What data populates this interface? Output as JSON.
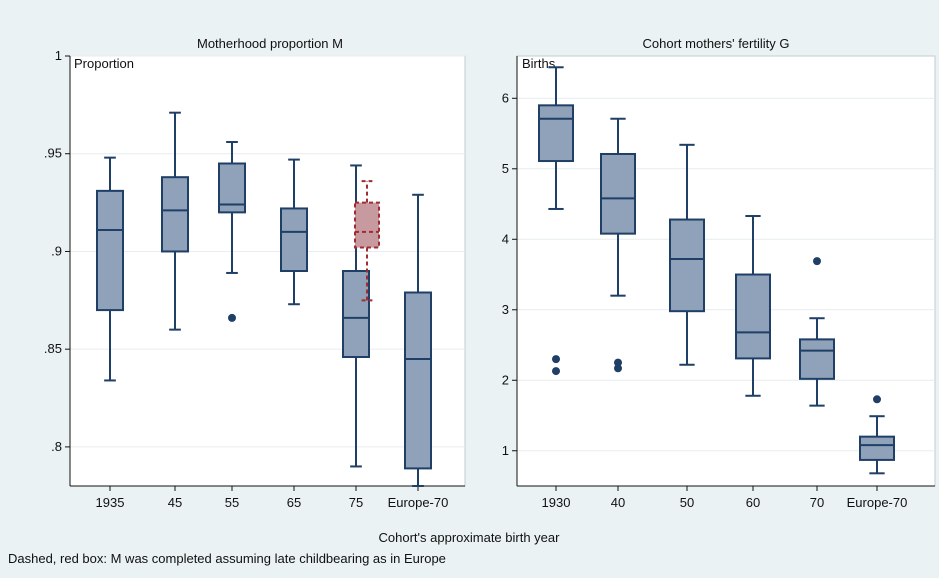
{
  "colors": {
    "background": "#eaf2f3",
    "box_fill": "#8fa2b9",
    "box_stroke": "#1f3f66",
    "red_fill": "#c79a9f",
    "red_stroke": "#a02c34",
    "grid": "#e6eef1"
  },
  "common_xlabel": "Cohort's approximate birth year",
  "note": "Dashed, red box: M was completed assuming late childbearing as in Europe",
  "chart_data": [
    {
      "type": "box",
      "title": "Motherhood proportion M",
      "ylabel": "Proportion",
      "ylim": [
        0.78,
        1.0
      ],
      "yticks": [
        0.8,
        0.85,
        0.9,
        0.95,
        1
      ],
      "ytick_labels": [
        ".8",
        ".85",
        ".9",
        ".95",
        "1"
      ],
      "categories": [
        "1935",
        "45",
        "55",
        "65",
        "75",
        "Europe-70"
      ],
      "boxes": [
        {
          "category": "1935",
          "whisker_low": 0.834,
          "q1": 0.87,
          "median": 0.911,
          "q3": 0.931,
          "whisker_high": 0.948,
          "outliers": []
        },
        {
          "category": "45",
          "whisker_low": 0.86,
          "q1": 0.9,
          "median": 0.921,
          "q3": 0.938,
          "whisker_high": 0.971,
          "outliers": []
        },
        {
          "category": "55",
          "whisker_low": 0.889,
          "q1": 0.92,
          "median": 0.924,
          "q3": 0.945,
          "whisker_high": 0.956,
          "outliers": [
            0.866
          ]
        },
        {
          "category": "65",
          "whisker_low": 0.873,
          "q1": 0.89,
          "median": 0.91,
          "q3": 0.922,
          "whisker_high": 0.947,
          "outliers": []
        },
        {
          "category": "75",
          "whisker_low": 0.79,
          "q1": 0.846,
          "median": 0.866,
          "q3": 0.89,
          "whisker_high": 0.944,
          "outliers": []
        },
        {
          "category": "Europe-70",
          "whisker_low": 0.78,
          "q1": 0.789,
          "median": 0.845,
          "q3": 0.879,
          "whisker_high": 0.929,
          "outliers": []
        }
      ],
      "completed_box": {
        "category": "75",
        "whisker_low": 0.875,
        "q1": 0.902,
        "median": 0.91,
        "q3": 0.925,
        "whisker_high": 0.936
      }
    },
    {
      "type": "box",
      "title": "Cohort mothers' fertility G",
      "ylabel": "Births",
      "ylim": [
        0.5,
        6.6
      ],
      "yticks": [
        1,
        2,
        3,
        4,
        5,
        6
      ],
      "ytick_labels": [
        "1",
        "2",
        "3",
        "4",
        "5",
        "6"
      ],
      "categories": [
        "1930",
        "40",
        "50",
        "60",
        "70",
        "Europe-70"
      ],
      "boxes": [
        {
          "category": "1930",
          "whisker_low": 4.43,
          "q1": 5.11,
          "median": 5.71,
          "q3": 5.9,
          "whisker_high": 6.44,
          "outliers": [
            2.3,
            2.13
          ]
        },
        {
          "category": "40",
          "whisker_low": 3.2,
          "q1": 4.08,
          "median": 4.58,
          "q3": 5.21,
          "whisker_high": 5.71,
          "outliers": [
            2.25,
            2.17
          ]
        },
        {
          "category": "50",
          "whisker_low": 2.22,
          "q1": 2.98,
          "median": 3.72,
          "q3": 4.28,
          "whisker_high": 5.34,
          "outliers": []
        },
        {
          "category": "60",
          "whisker_low": 1.78,
          "q1": 2.31,
          "median": 2.68,
          "q3": 3.5,
          "whisker_high": 4.33,
          "outliers": []
        },
        {
          "category": "70",
          "whisker_low": 1.64,
          "q1": 2.02,
          "median": 2.42,
          "q3": 2.58,
          "whisker_high": 2.88,
          "outliers": [
            3.69
          ]
        },
        {
          "category": "Europe-70",
          "whisker_low": 0.68,
          "q1": 0.87,
          "median": 1.08,
          "q3": 1.2,
          "whisker_high": 1.49,
          "outliers": [
            1.73
          ]
        }
      ]
    }
  ]
}
